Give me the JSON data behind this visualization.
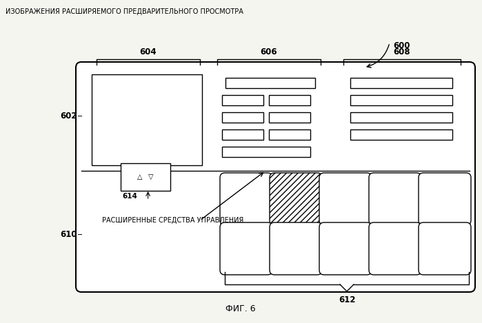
{
  "title": "ИЗОБРАЖЕНИЯ РАСШИРЯЕМОГО ПРЕДВАРИТЕЛЬНОГО ПРОСМОТРА",
  "footer": "ФИГ. 6",
  "bg_color": "#f5f5f0",
  "label_600": "600",
  "label_602": "602",
  "label_604": "604",
  "label_606": "606",
  "label_608": "608",
  "label_610": "610",
  "label_612": "612",
  "label_614": "614",
  "extended_controls_text": "РАСШИРЕННЫЕ СРЕДСТВА УПРАВЛЕНИЯ"
}
